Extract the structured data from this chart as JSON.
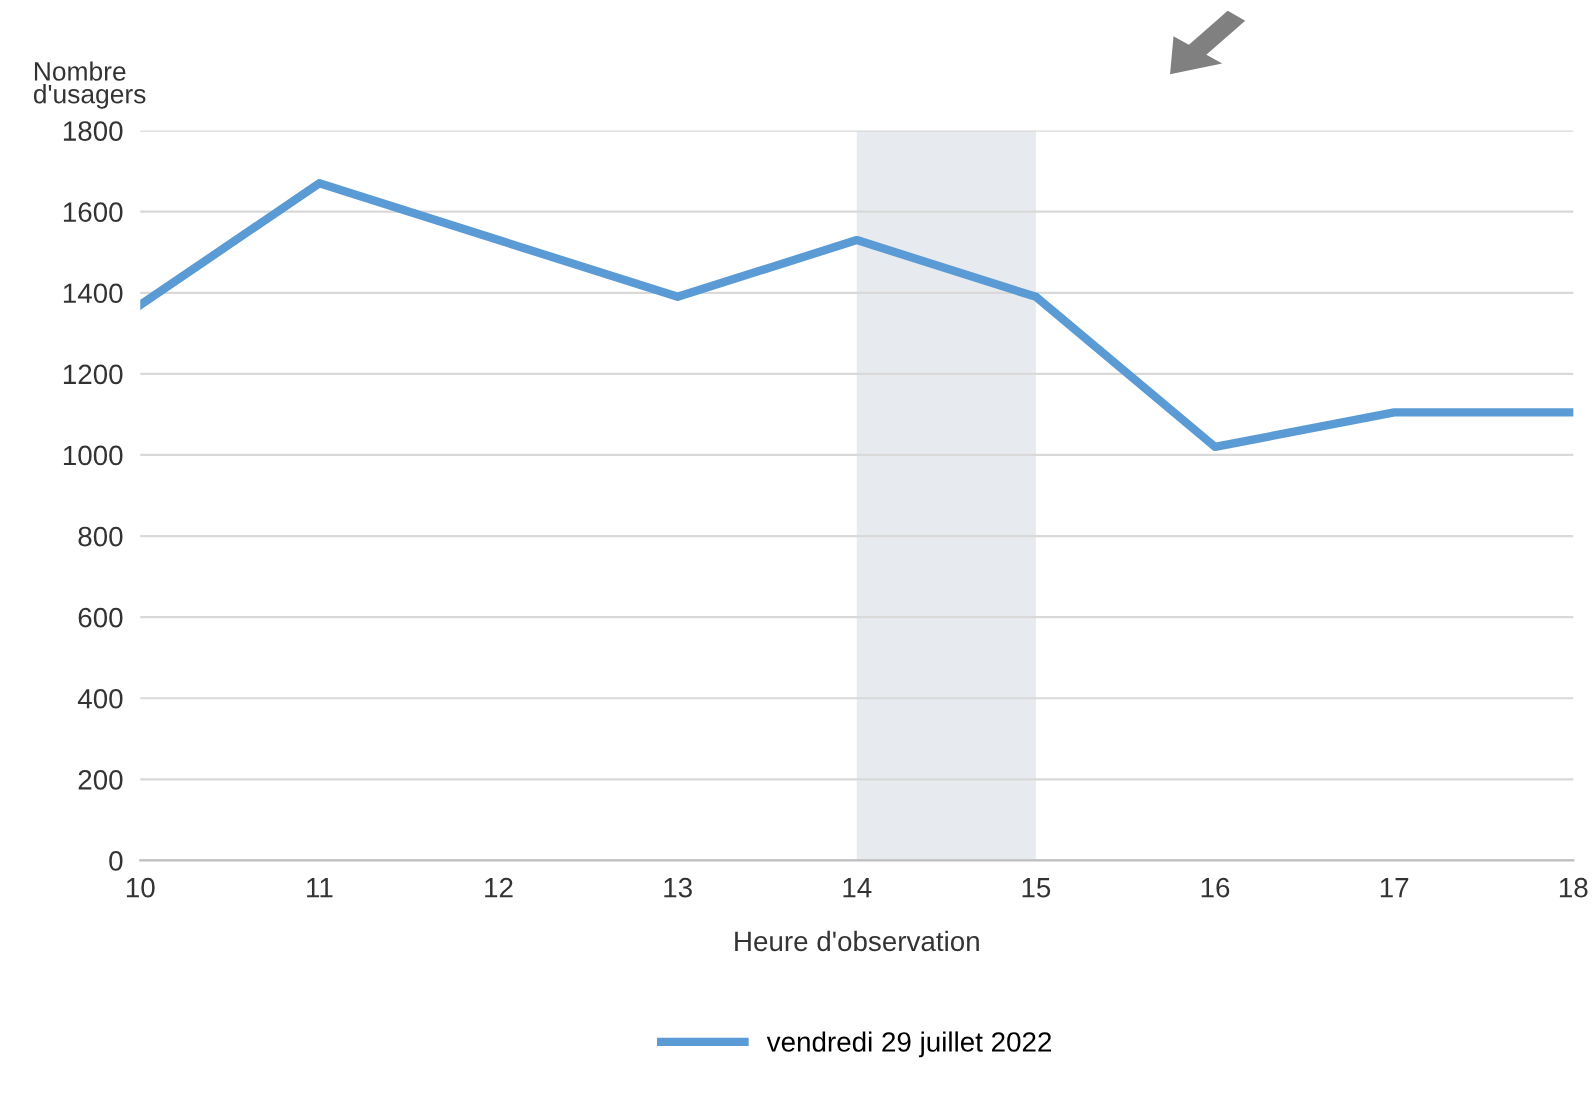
{
  "chart_data": {
    "type": "line",
    "xlabel": "Heure d'observation",
    "ylabel": "Nombre\nd'usagers",
    "x": [
      10,
      11,
      12,
      13,
      14,
      15,
      16,
      17,
      18
    ],
    "series": [
      {
        "name": "vendredi 29 juillet 2022",
        "color": "#5b9bd5",
        "values": [
          1370,
          1670,
          1530,
          1390,
          1530,
          1390,
          1020,
          1105,
          1105
        ]
      }
    ],
    "xlim": [
      10,
      18
    ],
    "xticks": [
      10,
      11,
      12,
      13,
      14,
      15,
      16,
      17,
      18
    ],
    "ylim": [
      0,
      1800
    ],
    "yticks": [
      0,
      200,
      400,
      600,
      800,
      1000,
      1200,
      1400,
      1600,
      1800
    ],
    "bands": [
      {
        "axis": "x",
        "from": 14,
        "to": 15,
        "color": "#e7eaef"
      }
    ],
    "grid": "y",
    "legend": "bottom",
    "marker": "none",
    "line_style": "solid"
  }
}
